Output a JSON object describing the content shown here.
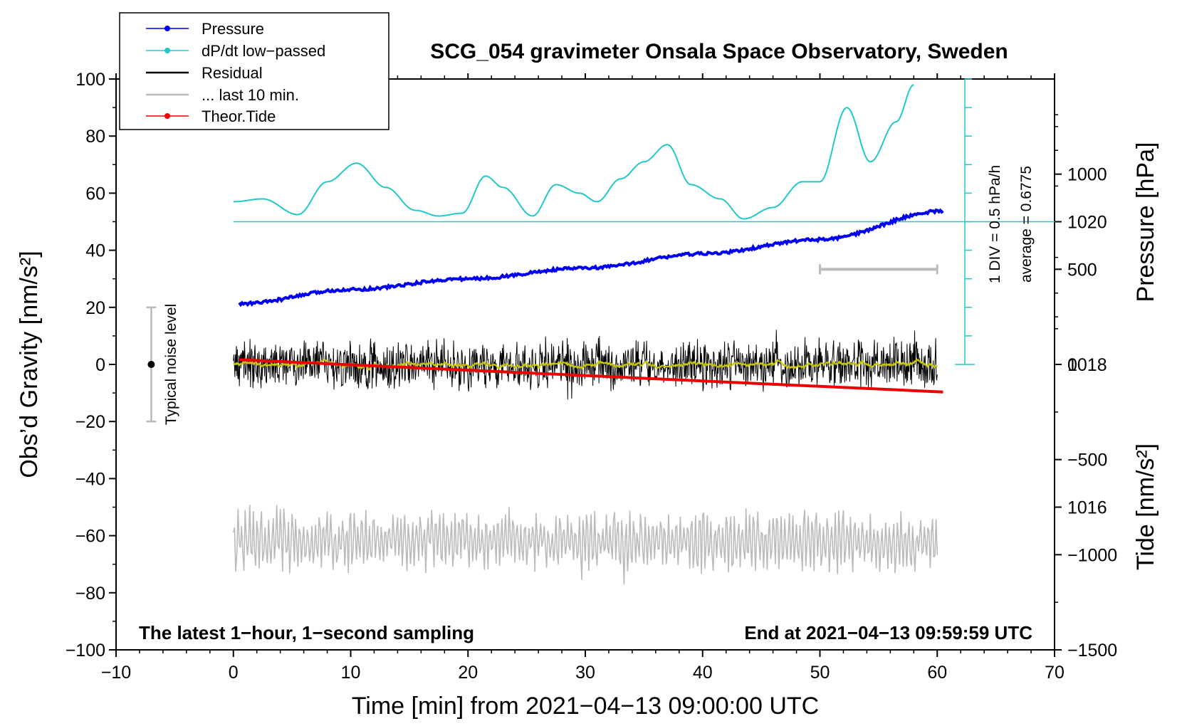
{
  "chart_data": {
    "type": "line",
    "title": "SCG_054 gravimeter Onsala Space Observatory, Sweden",
    "xlabel": "Time [min] from 2021−04−13 09:00:00 UTC",
    "ylabel_left": "Obs’d Gravity [nm/s²]",
    "ylabel_pressure": "Pressure [hPa]",
    "ylabel_tide": "Tide [nm/s²]",
    "xlim": [
      -10,
      70
    ],
    "ylim": [
      -100,
      100
    ],
    "x_ticks": [
      "−10",
      "0",
      "10",
      "20",
      "30",
      "40",
      "50",
      "60",
      "70"
    ],
    "y_ticks": [
      "−100",
      "−80",
      "−60",
      "−40",
      "−20",
      "0",
      "20",
      "40",
      "60",
      "80",
      "100"
    ],
    "pressure_axis": {
      "range": [
        1014,
        1022
      ],
      "ticks": [
        "1016",
        "1018",
        "1020"
      ]
    },
    "tide_axis": {
      "range": [
        -1500,
        1500
      ],
      "ticks": [
        "−1500",
        "−1000",
        "−500",
        "0",
        "500",
        "1000"
      ]
    },
    "legend": [
      {
        "label": "Pressure",
        "color": "#0000ee",
        "marker": true
      },
      {
        "label": "dP/dt low−passed",
        "color": "#22c8c8",
        "marker": true
      },
      {
        "label": "Residual",
        "color": "#000000",
        "marker": false
      },
      {
        "label": "... last 10 min.",
        "color": "#bbbbbb",
        "marker": false
      },
      {
        "label": "Theor.Tide",
        "color": "#ee0000",
        "marker": true
      }
    ],
    "annotations": {
      "noise_label": "Typical noise level",
      "div_label": "1 DIV = 0.5 hPa/h",
      "average_label": "average = 0.6775",
      "bottom_left": "The latest 1−hour, 1−second sampling",
      "bottom_right": "End at 2021−04−13 09:59:59 UTC"
    },
    "series": [
      {
        "name": "Pressure",
        "color": "#0000ee",
        "unit": "hPa",
        "x": [
          0.5,
          10,
          20,
          30,
          40,
          50,
          60.5
        ],
        "values": [
          1018.85,
          1019.05,
          1019.2,
          1019.35,
          1019.55,
          1019.75,
          1020.15
        ]
      },
      {
        "name": "dP/dt low-passed",
        "color": "#22c8c8",
        "unit": "hPa/h",
        "baseline_gravity": 50,
        "div_gravity": 10,
        "div_value": 0.5,
        "average": 0.6775,
        "x": [
          0,
          2.5,
          5.5,
          8,
          10.5,
          13,
          15.5,
          17.5,
          19.5,
          21.5,
          23,
          25.5,
          27.5,
          29.5,
          31,
          33,
          35,
          37,
          39,
          41.5,
          43.5,
          46,
          48.5,
          50,
          52.3,
          54.3,
          56.5,
          58
        ],
        "values": [
          57,
          58,
          52.5,
          64,
          70.5,
          62,
          54,
          52,
          53,
          66,
          62,
          52,
          63,
          60,
          57,
          65,
          71,
          77,
          63,
          58,
          51,
          55,
          64,
          64,
          90,
          71,
          85,
          98
        ]
      },
      {
        "name": "Residual",
        "color": "#000000",
        "x_range": [
          0,
          60
        ],
        "band": [
          -12,
          12
        ],
        "smoothed_color": "#c8c800"
      },
      {
        "name": "Theor.Tide",
        "color": "#ee0000",
        "unit": "nm/s²",
        "x": [
          0.5,
          60.5
        ],
        "values": [
          25,
          -145
        ]
      },
      {
        "name": "... last 10 min.",
        "color": "#bbbbbb",
        "x_range": [
          0,
          60
        ],
        "center": -62,
        "amplitude": 9
      }
    ],
    "noise_bar": {
      "x": -7,
      "center": 0,
      "half_range": 20
    },
    "last10_bar": {
      "x": [
        50,
        60
      ],
      "tide_value": 500
    }
  }
}
